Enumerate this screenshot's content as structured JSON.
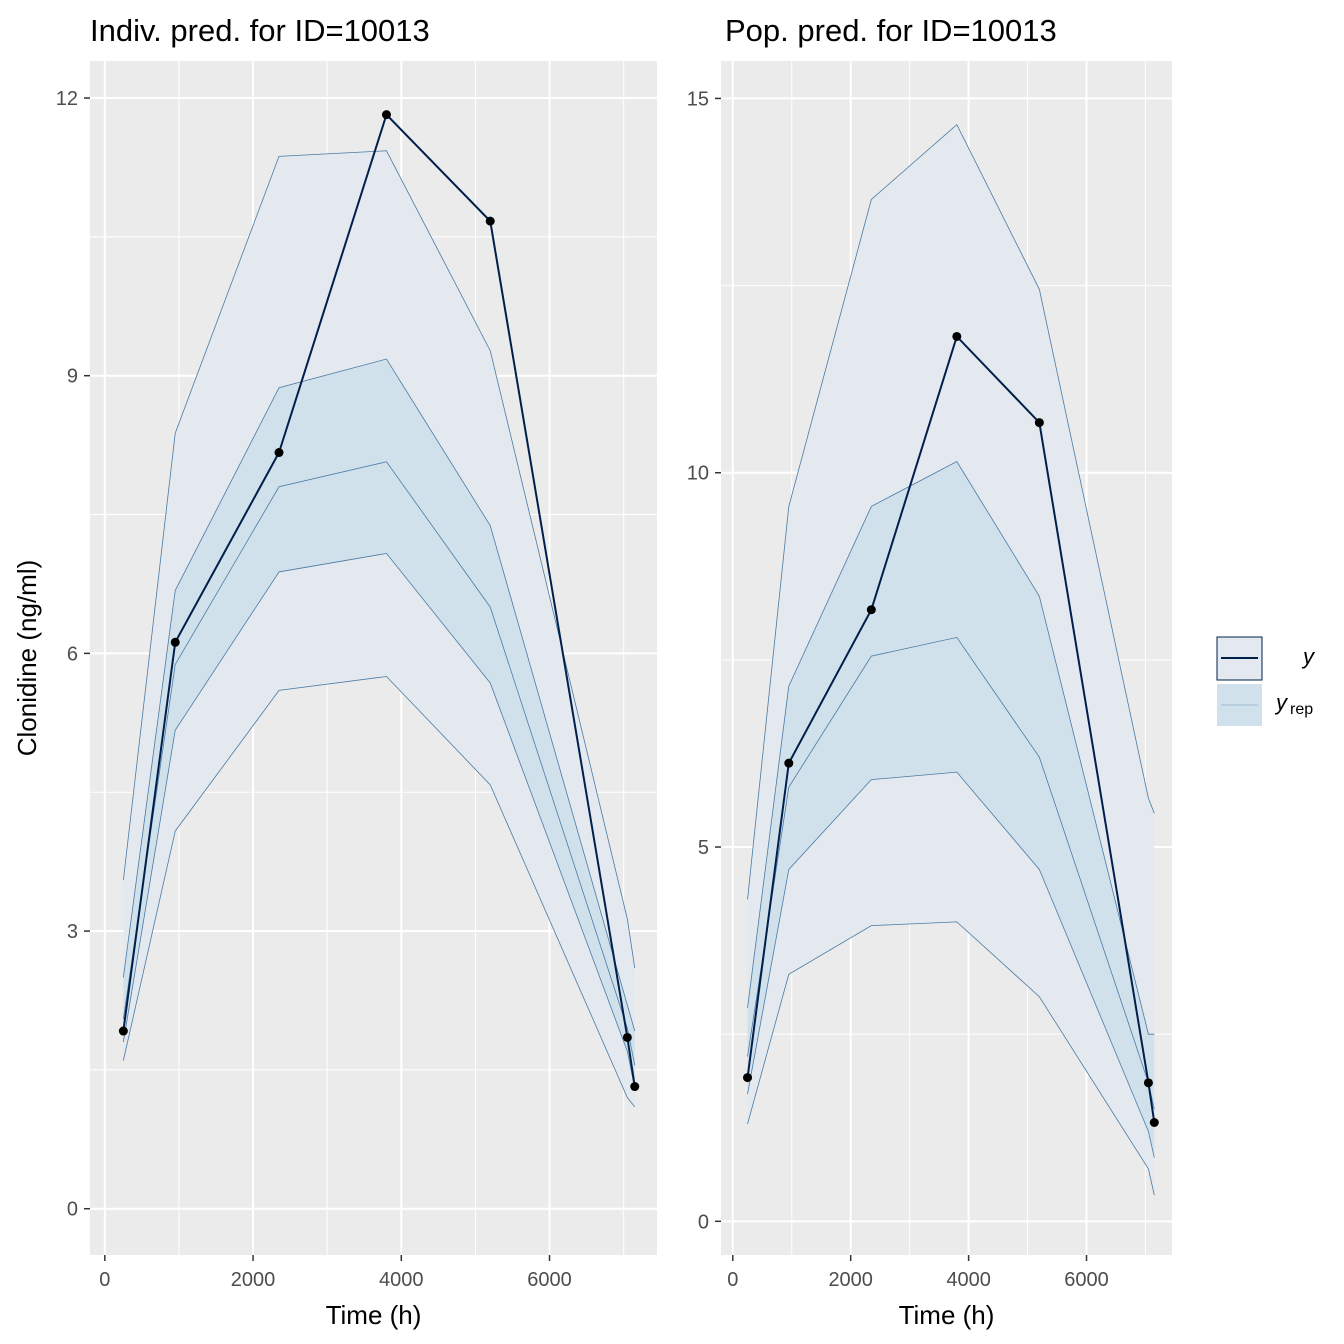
{
  "colors": {
    "panel_bg": "#ebebeb",
    "grid": "#ffffff",
    "y_line": "#011f4b",
    "band_outer": "#e3e9ef",
    "band_inner": "#d1e1ec",
    "band_line": "#4a7aa3",
    "point": "#000000"
  },
  "legend": {
    "y_label": "y",
    "yrep_label": "y",
    "yrep_sub": "rep"
  },
  "chart_data": [
    {
      "type": "line",
      "title": "Indiv. pred. for ID=10013",
      "xlabel": "Time (h)",
      "ylabel": "Clonidine (ng/ml)",
      "xlim": [
        -200,
        7450
      ],
      "ylim": [
        -0.5,
        12.4
      ],
      "x_ticks": [
        0,
        2000,
        4000,
        6000
      ],
      "x_tick_labels": [
        "0",
        "2000",
        "4000",
        "6000"
      ],
      "y_ticks": [
        0,
        3,
        6,
        9,
        12
      ],
      "y_tick_labels": [
        "0",
        "3",
        "6",
        "9",
        "12"
      ],
      "grid": true,
      "x": [
        250,
        950,
        2350,
        3800,
        5200,
        7050,
        7150
      ],
      "series": [
        {
          "name": "y",
          "values": [
            1.92,
            6.12,
            8.17,
            11.82,
            10.67,
            1.85,
            1.32
          ]
        }
      ],
      "yrep_bands": {
        "outer_upper": [
          3.55,
          8.38,
          11.37,
          11.43,
          9.27,
          3.13,
          2.6
        ],
        "inner_upper": [
          2.5,
          6.68,
          8.87,
          9.18,
          7.38,
          2.2,
          1.92
        ],
        "median": [
          2.05,
          5.88,
          7.8,
          8.07,
          6.5,
          1.95,
          1.55
        ],
        "inner_lower": [
          1.8,
          5.17,
          6.88,
          7.08,
          5.68,
          1.7,
          1.3
        ],
        "outer_lower": [
          1.6,
          4.08,
          5.6,
          5.75,
          4.58,
          1.2,
          1.1
        ]
      }
    },
    {
      "type": "line",
      "title": "Pop. pred. for ID=10013",
      "xlabel": "Time (h)",
      "ylabel": "",
      "xlim": [
        -200,
        7450
      ],
      "ylim": [
        -0.45,
        15.5
      ],
      "x_ticks": [
        0,
        2000,
        4000,
        6000
      ],
      "x_tick_labels": [
        "0",
        "2000",
        "4000",
        "6000"
      ],
      "y_ticks": [
        0,
        5,
        10,
        15
      ],
      "y_tick_labels": [
        "0",
        "5",
        "10",
        "15"
      ],
      "grid": true,
      "x": [
        250,
        950,
        2350,
        3800,
        5200,
        7050,
        7150
      ],
      "series": [
        {
          "name": "y",
          "values": [
            1.92,
            6.12,
            8.17,
            11.82,
            10.67,
            1.85,
            1.32
          ]
        }
      ],
      "yrep_bands": {
        "outer_upper": [
          4.3,
          9.55,
          13.65,
          14.65,
          12.45,
          5.65,
          5.45
        ],
        "inner_upper": [
          2.85,
          7.15,
          9.55,
          10.15,
          8.35,
          2.5,
          2.5
        ],
        "median": [
          2.2,
          5.8,
          7.55,
          7.8,
          6.2,
          1.85,
          1.5
        ],
        "inner_lower": [
          1.7,
          4.7,
          5.9,
          6.0,
          4.7,
          1.2,
          0.85
        ],
        "outer_lower": [
          1.3,
          3.3,
          3.95,
          4.0,
          3.0,
          0.7,
          0.35
        ]
      }
    }
  ]
}
